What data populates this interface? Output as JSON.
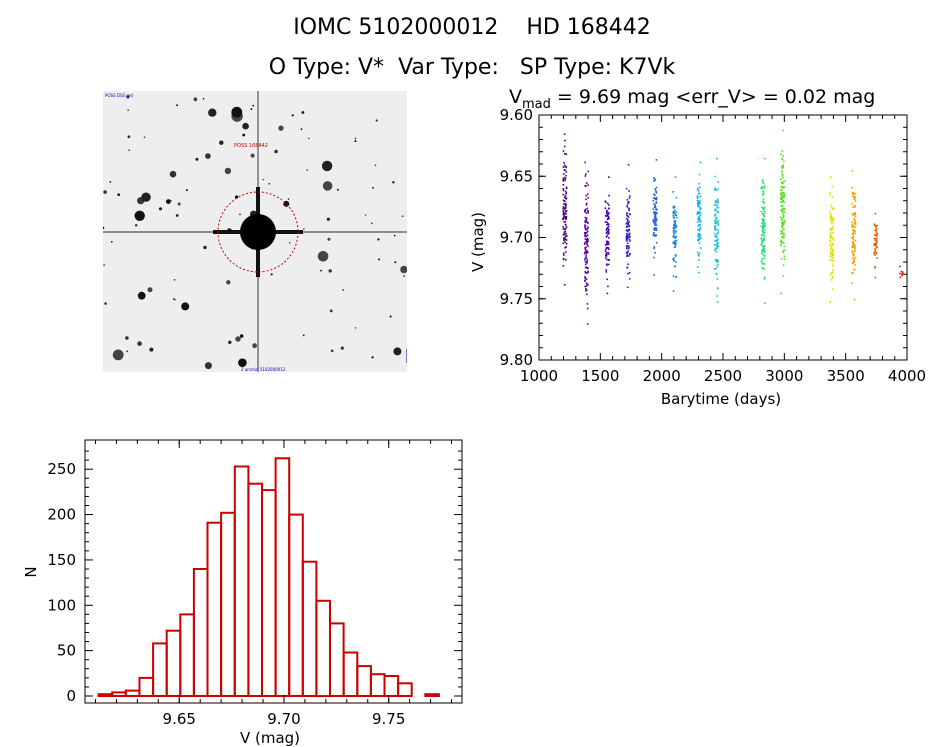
{
  "header": {
    "iomc": "IOMC 5102000012",
    "hd": "HD 168442",
    "otype": "O Type: V*",
    "vartype": "Var Type:",
    "sptype": "SP Type: K7Vk"
  },
  "stamp": {
    "top_left_label": "POSS DSS red",
    "target_label": "POSS 168442",
    "bottom_label": "2 arcmin 5102000012",
    "colors": {
      "circle": "#cc0000",
      "labels": "#0000cc"
    }
  },
  "chart_data": [
    {
      "type": "scatter",
      "title": "V_mad = 9.69 mag <err_V> = 0.02 mag",
      "title_parts": {
        "v": "V",
        "sub": "mad",
        "rest": " = 9.69 mag <err_V> = 0.02 mag"
      },
      "xlabel": "Barytime (days)",
      "ylabel": "V (mag)",
      "xlim": [
        1000,
        4000
      ],
      "ylim": [
        9.8,
        9.6
      ],
      "y_inverted": true,
      "xticks": [
        1000,
        1500,
        2000,
        2500,
        3000,
        3500,
        4000
      ],
      "yticks": [
        9.6,
        9.65,
        9.7,
        9.75,
        9.8
      ],
      "ytick_labels": [
        "9.60",
        "9.65",
        "9.70",
        "9.75",
        "9.80"
      ],
      "grid": false,
      "color_scale": "rainbow by time",
      "seasons": [
        {
          "x": 1205,
          "ymin": 9.615,
          "ymax": 9.738,
          "color": "#4a0080"
        },
        {
          "x": 1380,
          "ymin": 9.638,
          "ymax": 9.77,
          "color": "#5a00a0"
        },
        {
          "x": 1550,
          "ymin": 9.65,
          "ymax": 9.745,
          "color": "#4400b0"
        },
        {
          "x": 1720,
          "ymin": 9.64,
          "ymax": 9.74,
          "color": "#2a20c0"
        },
        {
          "x": 1940,
          "ymin": 9.636,
          "ymax": 9.73,
          "color": "#2060d0"
        },
        {
          "x": 2100,
          "ymin": 9.65,
          "ymax": 9.743,
          "color": "#1888e0"
        },
        {
          "x": 2300,
          "ymin": 9.638,
          "ymax": 9.728,
          "color": "#10b0e8"
        },
        {
          "x": 2440,
          "ymin": 9.635,
          "ymax": 9.752,
          "color": "#18c8e0"
        },
        {
          "x": 2820,
          "ymin": 9.635,
          "ymax": 9.753,
          "color": "#20e070"
        },
        {
          "x": 2980,
          "ymin": 9.612,
          "ymax": 9.745,
          "color": "#50e020"
        },
        {
          "x": 3380,
          "ymin": 9.65,
          "ymax": 9.752,
          "color": "#e0e000"
        },
        {
          "x": 3560,
          "ymin": 9.645,
          "ymax": 9.75,
          "color": "#f0a000"
        },
        {
          "x": 3740,
          "ymin": 9.68,
          "ymax": 9.732,
          "color": "#e06000"
        },
        {
          "x": 3950,
          "ymin": 9.723,
          "ymax": 9.732,
          "color": "#cc2000"
        }
      ]
    },
    {
      "type": "bar",
      "subtype": "histogram",
      "xlabel": "V (mag)",
      "ylabel": "N",
      "xlim": [
        9.605,
        9.785
      ],
      "ylim": [
        0,
        280
      ],
      "xticks": [
        9.65,
        9.7,
        9.75
      ],
      "yticks": [
        0,
        50,
        100,
        150,
        200,
        250
      ],
      "bar_color": "#cc0000",
      "bin_width": 0.0065,
      "bin_starts": [
        9.6115,
        9.618,
        9.6245,
        9.631,
        9.6375,
        9.644,
        9.6505,
        9.657,
        9.6635,
        9.67,
        9.6765,
        9.683,
        9.6895,
        9.696,
        9.7025,
        9.709,
        9.7155,
        9.722,
        9.7285,
        9.735,
        9.7415,
        9.748,
        9.7545,
        9.761,
        9.7675
      ],
      "counts": [
        2,
        4,
        6,
        20,
        58,
        72,
        90,
        140,
        191,
        202,
        253,
        234,
        227,
        262,
        200,
        148,
        105,
        80,
        48,
        33,
        24,
        22,
        14,
        0,
        2
      ]
    }
  ]
}
